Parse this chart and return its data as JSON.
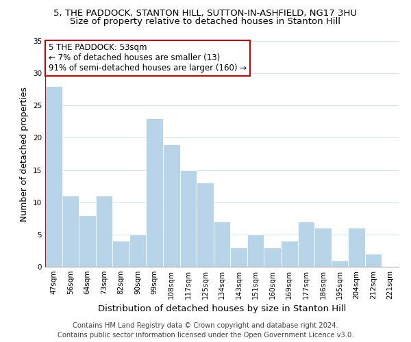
{
  "title": "5, THE PADDOCK, STANTON HILL, SUTTON-IN-ASHFIELD, NG17 3HU",
  "subtitle": "Size of property relative to detached houses in Stanton Hill",
  "xlabel": "Distribution of detached houses by size in Stanton Hill",
  "ylabel": "Number of detached properties",
  "bin_labels": [
    "47sqm",
    "56sqm",
    "64sqm",
    "73sqm",
    "82sqm",
    "90sqm",
    "99sqm",
    "108sqm",
    "117sqm",
    "125sqm",
    "134sqm",
    "143sqm",
    "151sqm",
    "160sqm",
    "169sqm",
    "177sqm",
    "186sqm",
    "195sqm",
    "204sqm",
    "212sqm",
    "221sqm"
  ],
  "bar_values": [
    28,
    11,
    8,
    11,
    4,
    5,
    23,
    19,
    15,
    13,
    7,
    3,
    5,
    3,
    4,
    7,
    6,
    1,
    6,
    2,
    0
  ],
  "bar_color": "#b8d4e8",
  "highlight_color": "#cc0000",
  "ylim": [
    0,
    35
  ],
  "yticks": [
    0,
    5,
    10,
    15,
    20,
    25,
    30,
    35
  ],
  "annotation_line1": "5 THE PADDOCK: 53sqm",
  "annotation_line2": "← 7% of detached houses are smaller (13)",
  "annotation_line3": "91% of semi-detached houses are larger (160) →",
  "annotation_box_color": "#ffffff",
  "annotation_box_edgecolor": "#cc0000",
  "footer_line1": "Contains HM Land Registry data © Crown copyright and database right 2024.",
  "footer_line2": "Contains public sector information licensed under the Open Government Licence v3.0.",
  "bg_color": "#ffffff",
  "grid_color": "#d0e4f0",
  "title_fontsize": 9.5,
  "subtitle_fontsize": 9.5,
  "ylabel_fontsize": 9,
  "xlabel_fontsize": 9.5,
  "tick_fontsize": 7.5,
  "annotation_fontsize": 8.5,
  "footer_fontsize": 7.2
}
